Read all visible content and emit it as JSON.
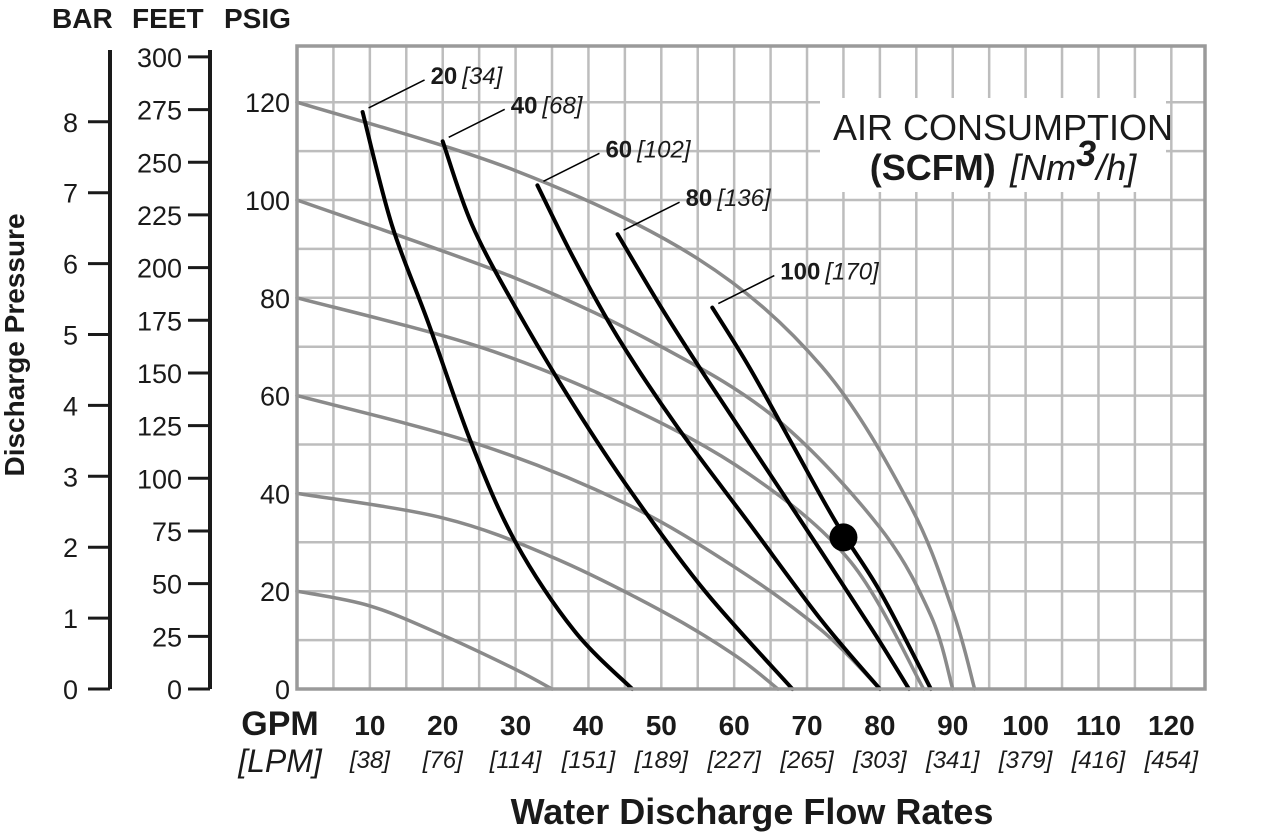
{
  "chart_data": {
    "type": "line",
    "title": "",
    "xlabel": "Water Discharge Flow Rates",
    "x_unit_primary": "GPM",
    "x_unit_secondary": "[LPM]",
    "xlim": [
      0,
      125
    ],
    "x_ticks": [
      10,
      20,
      30,
      40,
      50,
      60,
      70,
      80,
      90,
      100,
      110,
      120
    ],
    "x_ticks_secondary": [
      "[38]",
      "[76]",
      "[114]",
      "[151]",
      "[189]",
      "[227]",
      "[265]",
      "[303]",
      "[341]",
      "[379]",
      "[416]",
      "[454]"
    ],
    "ylabel": "Discharge Pressure",
    "ylim": [
      0,
      130
    ],
    "y_axes": {
      "bar": {
        "header": "BAR",
        "ticks": [
          0,
          1,
          2,
          3,
          4,
          5,
          6,
          7,
          8
        ]
      },
      "feet": {
        "header": "FEET",
        "ticks": [
          0,
          25,
          50,
          75,
          100,
          125,
          150,
          175,
          200,
          225,
          250,
          275,
          300
        ]
      },
      "psig": {
        "header": "PSIG",
        "ticks": [
          0,
          20,
          40,
          60,
          80,
          100,
          120
        ]
      }
    },
    "grid": true,
    "legend": {
      "line1": "AIR CONSUMPTION",
      "line2_bold": "(SCFM)",
      "line2_italic": "[Nm",
      "line2_sup": "3",
      "line2_end": "/h]",
      "position": "top-right"
    },
    "performance_curves": [
      {
        "air_supply_psig": 20,
        "points": [
          [
            0,
            20
          ],
          [
            10,
            17
          ],
          [
            20,
            11
          ],
          [
            30,
            4
          ],
          [
            35,
            0
          ]
        ]
      },
      {
        "air_supply_psig": 40,
        "points": [
          [
            0,
            40
          ],
          [
            20,
            35
          ],
          [
            35,
            27
          ],
          [
            50,
            16
          ],
          [
            60,
            7
          ],
          [
            66,
            0
          ]
        ]
      },
      {
        "air_supply_psig": 60,
        "points": [
          [
            0,
            60
          ],
          [
            25,
            50
          ],
          [
            45,
            38
          ],
          [
            60,
            25
          ],
          [
            72,
            12
          ],
          [
            80,
            0
          ]
        ]
      },
      {
        "air_supply_psig": 80,
        "points": [
          [
            0,
            80
          ],
          [
            25,
            70
          ],
          [
            45,
            58
          ],
          [
            62,
            44
          ],
          [
            76,
            26
          ],
          [
            86,
            0
          ]
        ]
      },
      {
        "air_supply_psig": 100,
        "points": [
          [
            0,
            100
          ],
          [
            30,
            84
          ],
          [
            50,
            70
          ],
          [
            66,
            55
          ],
          [
            80,
            33
          ],
          [
            87,
            15
          ],
          [
            90,
            0
          ]
        ]
      },
      {
        "air_supply_psig": 120,
        "points": [
          [
            0,
            120
          ],
          [
            30,
            106
          ],
          [
            55,
            88
          ],
          [
            72,
            66
          ],
          [
            84,
            38
          ],
          [
            90,
            16
          ],
          [
            93,
            0
          ]
        ]
      }
    ],
    "air_consumption_curves": [
      {
        "scfm": "20",
        "nm3h": "[34]",
        "points": [
          [
            9,
            118
          ],
          [
            13,
            95
          ],
          [
            18,
            75
          ],
          [
            24,
            50
          ],
          [
            30,
            30
          ],
          [
            38,
            12
          ],
          [
            46,
            0
          ]
        ]
      },
      {
        "scfm": "40",
        "nm3h": "[68]",
        "points": [
          [
            20,
            112
          ],
          [
            24,
            95
          ],
          [
            30,
            78
          ],
          [
            38,
            58
          ],
          [
            46,
            40
          ],
          [
            56,
            20
          ],
          [
            68,
            0
          ]
        ]
      },
      {
        "scfm": "60",
        "nm3h": "[102]",
        "points": [
          [
            33,
            103
          ],
          [
            38,
            88
          ],
          [
            44,
            72
          ],
          [
            52,
            54
          ],
          [
            62,
            34
          ],
          [
            72,
            14
          ],
          [
            80,
            0
          ]
        ]
      },
      {
        "scfm": "80",
        "nm3h": "[136]",
        "points": [
          [
            44,
            93
          ],
          [
            50,
            78
          ],
          [
            56,
            64
          ],
          [
            64,
            46
          ],
          [
            72,
            28
          ],
          [
            79,
            12
          ],
          [
            84,
            0
          ]
        ]
      },
      {
        "scfm": "100",
        "nm3h": "[170]",
        "points": [
          [
            57,
            78
          ],
          [
            62,
            66
          ],
          [
            68,
            50
          ],
          [
            74,
            34
          ],
          [
            80,
            20
          ],
          [
            87,
            0
          ]
        ]
      }
    ],
    "operating_point": {
      "x": 75,
      "y": 31
    }
  }
}
